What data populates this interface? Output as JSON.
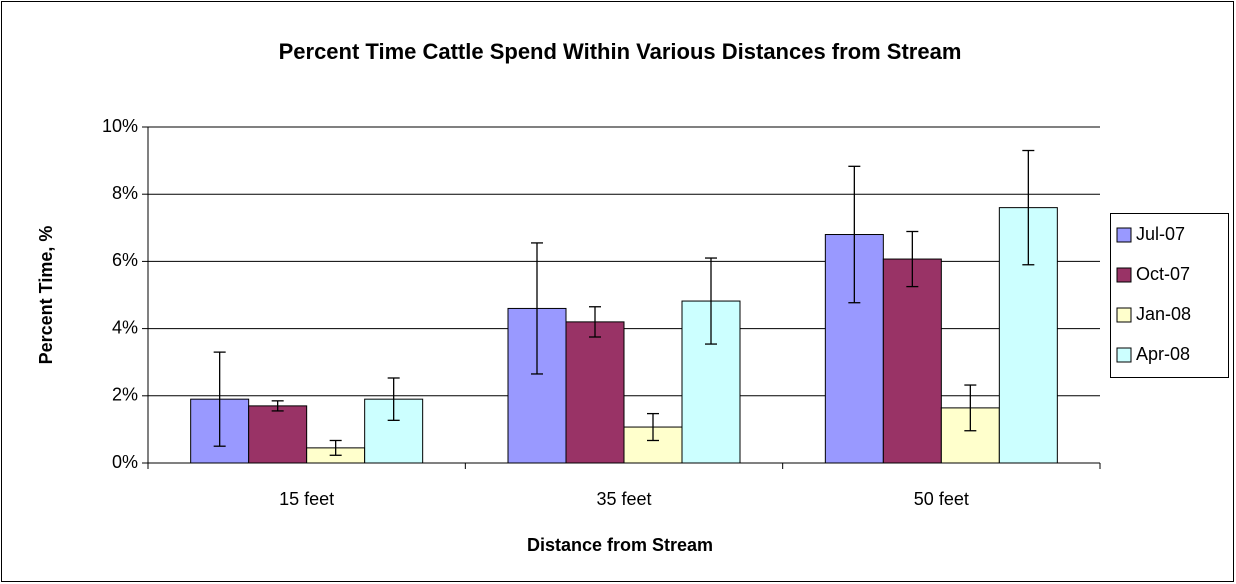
{
  "chart_data": {
    "type": "bar",
    "title": "Percent Time Cattle Spend Within Various Distances from Stream",
    "x_label": "Distance from Stream",
    "y_label": "Percent Time, %",
    "categories": [
      "15 feet",
      "35 feet",
      "50 feet"
    ],
    "series": [
      {
        "name": "Jul-07",
        "color": "#9999ff",
        "values": [
          1.9,
          4.6,
          6.8
        ],
        "errors": [
          1.4,
          1.95,
          2.03
        ]
      },
      {
        "name": "Oct-07",
        "color": "#993366",
        "values": [
          1.7,
          4.2,
          6.07
        ],
        "errors": [
          0.15,
          0.45,
          0.82
        ]
      },
      {
        "name": "Jan-08",
        "color": "#ffffcc",
        "values": [
          0.45,
          1.07,
          1.64
        ],
        "errors": [
          0.22,
          0.4,
          0.68
        ]
      },
      {
        "name": "Apr-08",
        "color": "#ccffff",
        "values": [
          1.9,
          4.82,
          7.6
        ],
        "errors": [
          0.63,
          1.28,
          1.7
        ]
      }
    ],
    "ylim": [
      0,
      10
    ],
    "yticks": [
      {
        "value": 0,
        "label": "0%"
      },
      {
        "value": 2,
        "label": "2%"
      },
      {
        "value": 4,
        "label": "4%"
      },
      {
        "value": 6,
        "label": "6%"
      },
      {
        "value": 8,
        "label": "8%"
      },
      {
        "value": 10,
        "label": "10%"
      }
    ],
    "grid": true,
    "legend": "right"
  }
}
